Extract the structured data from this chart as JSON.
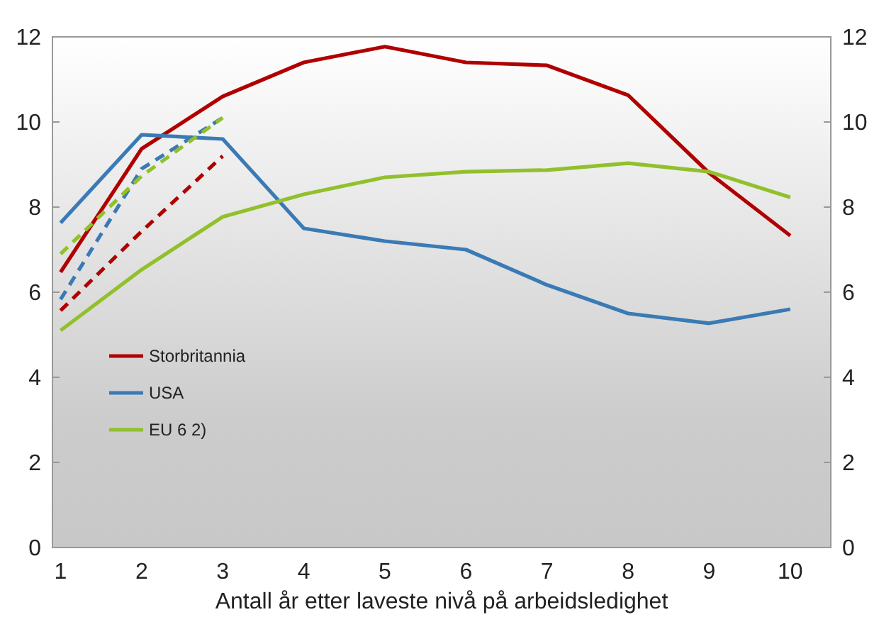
{
  "chart_data": {
    "type": "line",
    "xlabel": "Antall år etter laveste nivå på arbeidsledighet",
    "x": [
      1,
      2,
      3,
      4,
      5,
      6,
      7,
      8,
      9,
      10
    ],
    "series": [
      {
        "name": "Storbritannia",
        "color": "#b00000",
        "values": [
          6.47,
          9.37,
          10.6,
          11.4,
          11.77,
          11.4,
          11.33,
          10.63,
          8.8,
          7.33
        ]
      },
      {
        "name": "USA",
        "color": "#3a7ab5",
        "values": [
          7.63,
          9.7,
          9.6,
          7.5,
          7.2,
          7.0,
          6.17,
          5.5,
          5.27,
          5.6
        ]
      },
      {
        "name": "EU 6 2)",
        "color": "#92c02c",
        "values": [
          5.1,
          6.53,
          7.77,
          8.3,
          8.7,
          8.83,
          8.87,
          9.03,
          8.83,
          8.23
        ]
      },
      {
        "color": "#b00000",
        "line_style": "dashed",
        "x": [
          1,
          2,
          3
        ],
        "values": [
          5.57,
          7.43,
          9.2
        ]
      },
      {
        "color": "#3a7ab5",
        "line_style": "dashed",
        "x": [
          1,
          2,
          3
        ],
        "values": [
          5.83,
          8.9,
          10.1
        ]
      },
      {
        "color": "#92c02c",
        "line_style": "dashed",
        "x": [
          1,
          2,
          3
        ],
        "values": [
          6.9,
          8.73,
          10.1
        ]
      }
    ],
    "xlim": [
      0.9,
      10.5
    ],
    "xticks": [
      1,
      2,
      3,
      4,
      5,
      6,
      7,
      8,
      9,
      10
    ],
    "ylim": [
      0,
      12
    ],
    "yticks": [
      0,
      2,
      4,
      6,
      8,
      10,
      12
    ],
    "y2lim": [
      0,
      12
    ],
    "y2ticks": [
      0,
      2,
      4,
      6,
      8,
      10,
      12
    ],
    "line_style": "solid",
    "marker": "none",
    "grid": false,
    "legend": "bottom left"
  }
}
